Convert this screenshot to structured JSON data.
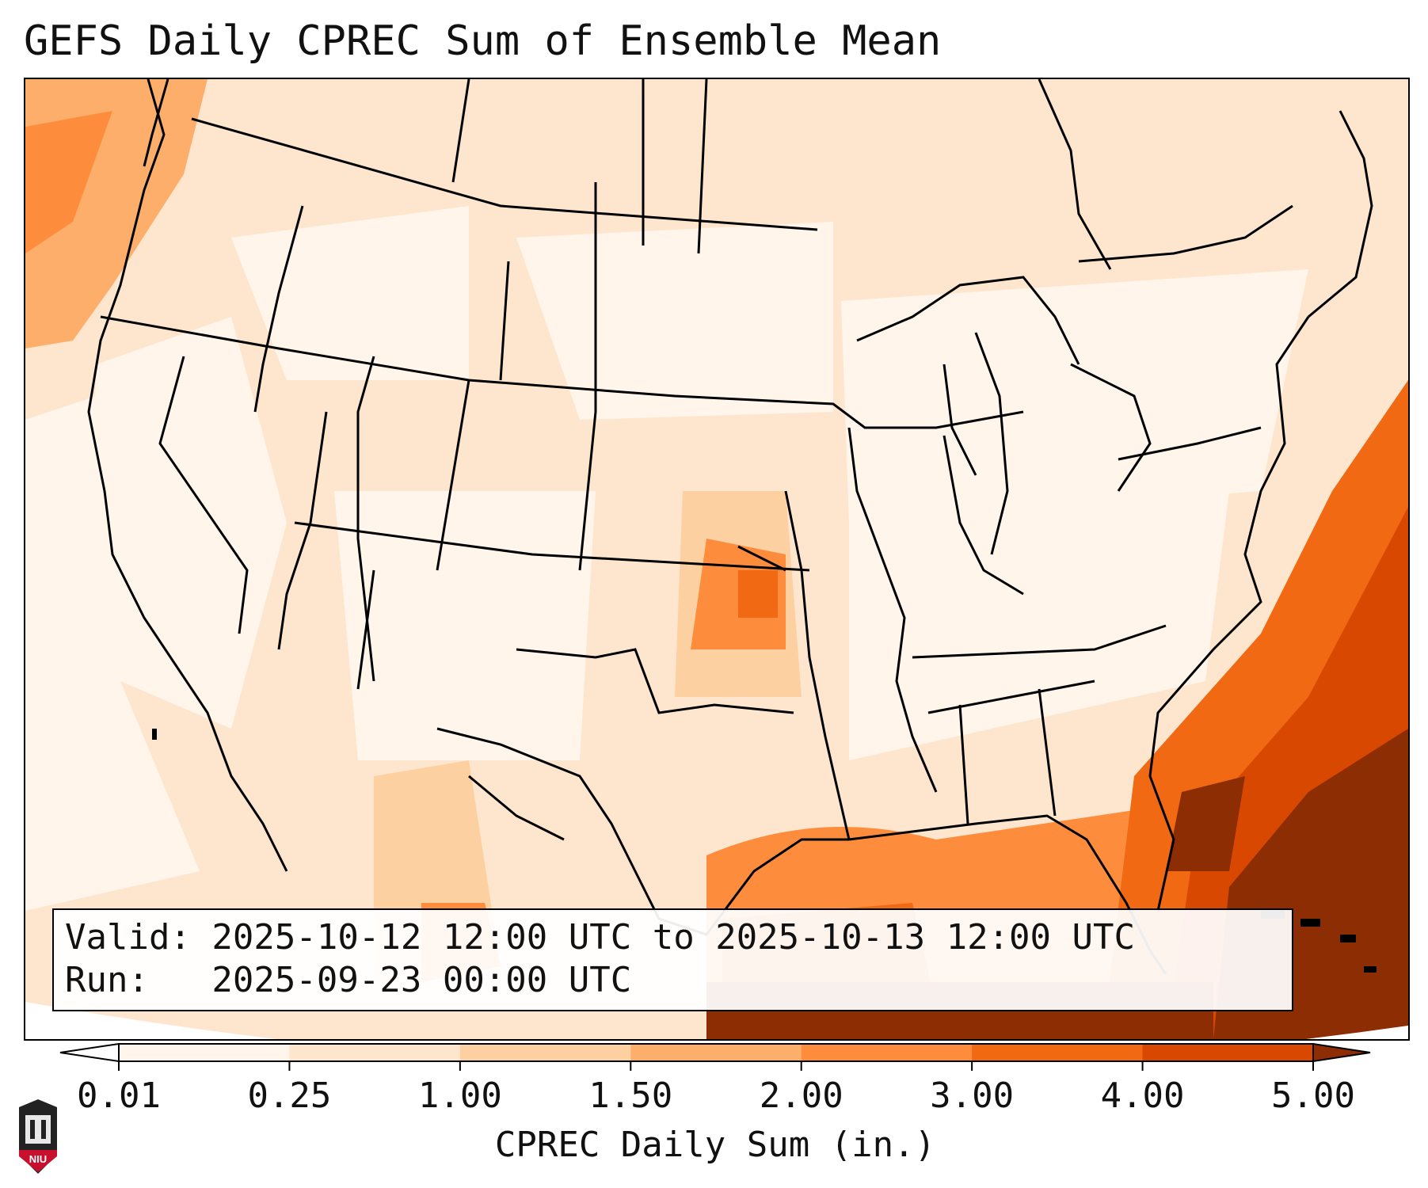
{
  "title": "GEFS Daily CPREC Sum of Ensemble Mean",
  "info": {
    "valid_line": "Valid: 2025-10-12 12:00 UTC to 2025-10-13 12:00 UTC",
    "run_line": "Run:   2025-09-23 00:00 UTC"
  },
  "colorbar": {
    "label": "CPREC Daily Sum (in.)",
    "ticks": [
      "0.01",
      "0.25",
      "1.00",
      "1.50",
      "2.00",
      "3.00",
      "4.00",
      "5.00"
    ],
    "colors": [
      "#fff5eb",
      "#fee6ce",
      "#fdd0a2",
      "#fdae6b",
      "#fd8d3c",
      "#f16913",
      "#d94801",
      "#8c2d04"
    ]
  },
  "logo": {
    "text": "NIU",
    "color": "#c8102e"
  }
}
